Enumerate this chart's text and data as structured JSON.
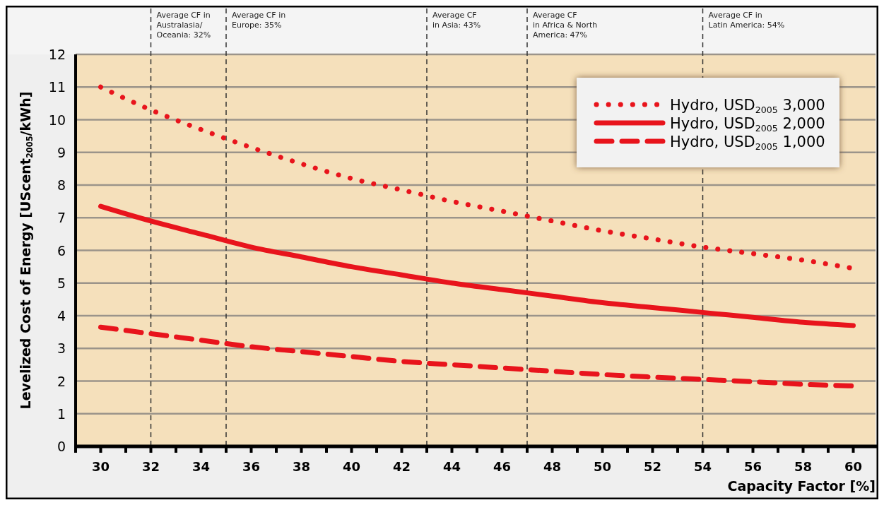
{
  "chart_data": {
    "type": "line",
    "xlabel": "Capacity Factor  [%]",
    "ylabel": "Levelized Cost of Energy [UScent$_{2005}$/kWh]",
    "x": [
      30,
      32,
      34,
      36,
      38,
      40,
      42,
      44,
      46,
      48,
      50,
      52,
      54,
      56,
      58,
      60
    ],
    "series": [
      {
        "name": "Hydro, USD$_{2005}$ 3,000",
        "color": "#e8141c",
        "line_style": "dotted",
        "values": [
          11.0,
          10.3,
          9.7,
          9.15,
          8.65,
          8.2,
          7.85,
          7.5,
          7.2,
          6.9,
          6.6,
          6.35,
          6.1,
          5.9,
          5.7,
          5.45
        ]
      },
      {
        "name": "Hydro, USD$_{2005}$ 2,000",
        "color": "#e8141c",
        "line_style": "solid",
        "values": [
          7.35,
          6.9,
          6.5,
          6.1,
          5.8,
          5.5,
          5.25,
          5.0,
          4.8,
          4.6,
          4.4,
          4.25,
          4.1,
          3.95,
          3.8,
          3.7
        ]
      },
      {
        "name": "Hydro, USD$_{2005}$ 1,000",
        "color": "#e8141c",
        "line_style": "dashed",
        "values": [
          3.65,
          3.45,
          3.25,
          3.05,
          2.9,
          2.75,
          2.6,
          2.5,
          2.4,
          2.3,
          2.2,
          2.12,
          2.05,
          1.98,
          1.9,
          1.85
        ]
      }
    ],
    "xlim": [
      29,
      61
    ],
    "xticks": [
      {
        "value": 29,
        "label": null
      },
      30,
      {
        "value": 31,
        "label": null
      },
      32,
      {
        "value": 33,
        "label": null
      },
      34,
      {
        "value": 35,
        "label": null
      },
      36,
      {
        "value": 37,
        "label": null
      },
      38,
      {
        "value": 39,
        "label": null
      },
      40,
      {
        "value": 41,
        "label": null
      },
      42,
      {
        "value": 43,
        "label": null
      },
      44,
      {
        "value": 45,
        "label": null
      },
      46,
      {
        "value": 47,
        "label": null
      },
      48,
      {
        "value": 49,
        "label": null
      },
      50,
      {
        "value": 51,
        "label": null
      },
      52,
      {
        "value": 53,
        "label": null
      },
      54,
      {
        "value": 55,
        "label": null
      },
      56,
      {
        "value": 57,
        "label": null
      },
      58,
      {
        "value": 59,
        "label": null
      },
      60,
      {
        "value": 61,
        "label": null
      }
    ],
    "ylim": [
      0,
      12
    ],
    "yticks": [
      0,
      1,
      2,
      3,
      4,
      5,
      6,
      7,
      8,
      9,
      10,
      11,
      12
    ],
    "grid": "y",
    "legend": "top right",
    "marker": "none",
    "ref_lines": [
      {
        "axis": "x",
        "value": 32,
        "label": "Average CF in\nAustralasia/\nOceania: 32%",
        "line_style": "dashed",
        "color": "#333333"
      },
      {
        "axis": "x",
        "value": 35,
        "label": "Average CF in\nEurope: 35%",
        "line_style": "dashed",
        "color": "#333333"
      },
      {
        "axis": "x",
        "value": 43,
        "label": "Average CF\nin Asia: 43%",
        "line_style": "dashed",
        "color": "#333333"
      },
      {
        "axis": "x",
        "value": 47,
        "label": "Average CF\nin Africa & North\nAmerica: 47%",
        "line_style": "dashed",
        "color": "#333333"
      },
      {
        "axis": "x",
        "value": 54,
        "label": "Average CF in\nLatin America: 54%",
        "line_style": "dashed",
        "color": "#333333"
      }
    ]
  }
}
